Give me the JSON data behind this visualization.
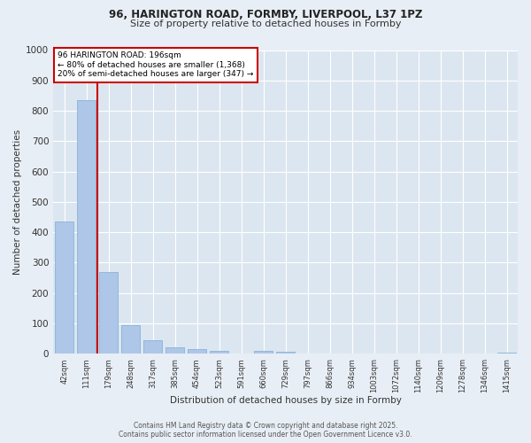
{
  "title_line1": "96, HARINGTON ROAD, FORMBY, LIVERPOOL, L37 1PZ",
  "title_line2": "Size of property relative to detached houses in Formby",
  "xlabel": "Distribution of detached houses by size in Formby",
  "ylabel": "Number of detached properties",
  "categories": [
    "42sqm",
    "111sqm",
    "179sqm",
    "248sqm",
    "317sqm",
    "385sqm",
    "454sqm",
    "523sqm",
    "591sqm",
    "660sqm",
    "729sqm",
    "797sqm",
    "866sqm",
    "934sqm",
    "1003sqm",
    "1072sqm",
    "1140sqm",
    "1209sqm",
    "1278sqm",
    "1346sqm",
    "1415sqm"
  ],
  "values": [
    435,
    835,
    268,
    95,
    45,
    22,
    17,
    10,
    0,
    10,
    7,
    2,
    2,
    0,
    0,
    0,
    0,
    0,
    0,
    0,
    5
  ],
  "bar_color": "#aec6e8",
  "bar_edge_color": "#7aafd4",
  "vline_x": 1.5,
  "vline_color": "#cc0000",
  "annotation_text_line1": "96 HARINGTON ROAD: 196sqm",
  "annotation_text_line2": "← 80% of detached houses are smaller (1,368)",
  "annotation_text_line3": "20% of semi-detached houses are larger (347) →",
  "annotation_box_color": "#cc0000",
  "ylim": [
    0,
    1000
  ],
  "yticks": [
    0,
    100,
    200,
    300,
    400,
    500,
    600,
    700,
    800,
    900,
    1000
  ],
  "background_color": "#e8eef5",
  "plot_bg_color": "#dce6f0",
  "grid_color": "#ffffff",
  "footer_line1": "Contains HM Land Registry data © Crown copyright and database right 2025.",
  "footer_line2": "Contains public sector information licensed under the Open Government Licence v3.0."
}
